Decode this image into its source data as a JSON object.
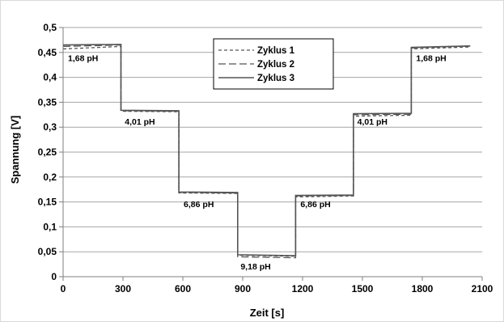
{
  "chart_data": {
    "type": "line",
    "xlabel": "Zeit [s]",
    "ylabel": "Spannung [V]",
    "xlim": [
      0,
      2100
    ],
    "ylim": [
      0,
      0.5
    ],
    "x_ticks": [
      0,
      300,
      600,
      900,
      1200,
      1500,
      1800,
      2100
    ],
    "x_tick_labels": [
      "0",
      "300",
      "600",
      "900",
      "1200",
      "1500",
      "1800",
      "2100"
    ],
    "y_ticks": [
      0,
      0.05,
      0.1,
      0.15,
      0.2,
      0.25,
      0.3,
      0.35,
      0.4,
      0.45,
      0.5
    ],
    "y_tick_labels": [
      "0",
      "0,05",
      "0,1",
      "0,15",
      "0,2",
      "0,25",
      "0,3",
      "0,35",
      "0,4",
      "0,45",
      "0,5"
    ],
    "grid": "horizontal",
    "legend_position": "top-center",
    "colors": {
      "series": "#555555",
      "grid": "#a6a6a6",
      "axis": "#7f7f7f"
    },
    "series": [
      {
        "name": "Zyklus 1",
        "style": "short-dash",
        "x": [
          0,
          290,
          290,
          580,
          580,
          875,
          875,
          1165,
          1165,
          1455,
          1455,
          1745,
          1745,
          2040
        ],
        "y": [
          0.457,
          0.462,
          0.332,
          0.331,
          0.168,
          0.167,
          0.043,
          0.041,
          0.16,
          0.162,
          0.322,
          0.324,
          0.457,
          0.461
        ]
      },
      {
        "name": "Zyklus 2",
        "style": "long-dash",
        "x": [
          0,
          290,
          290,
          580,
          580,
          875,
          875,
          1165,
          1165,
          1455,
          1455,
          1745,
          1745,
          2040
        ],
        "y": [
          0.462,
          0.465,
          0.333,
          0.332,
          0.169,
          0.168,
          0.04,
          0.038,
          0.162,
          0.163,
          0.325,
          0.326,
          0.459,
          0.463
        ]
      },
      {
        "name": "Zyklus 3",
        "style": "solid",
        "x": [
          0,
          290,
          290,
          580,
          580,
          875,
          875,
          1165,
          1165,
          1455,
          1455,
          1745,
          1745,
          2040
        ],
        "y": [
          0.465,
          0.466,
          0.334,
          0.333,
          0.17,
          0.169,
          0.044,
          0.042,
          0.163,
          0.164,
          0.327,
          0.328,
          0.46,
          0.463
        ]
      }
    ],
    "annotations": [
      {
        "text": "1,68 pH",
        "x": 100,
        "y": 0.433
      },
      {
        "text": "4,01 pH",
        "x": 385,
        "y": 0.305
      },
      {
        "text": "6,86 pH",
        "x": 680,
        "y": 0.14
      },
      {
        "text": "9,18 pH",
        "x": 965,
        "y": 0.015
      },
      {
        "text": "6,86 pH",
        "x": 1265,
        "y": 0.14
      },
      {
        "text": "4,01 pH",
        "x": 1550,
        "y": 0.305
      },
      {
        "text": "1,68 pH",
        "x": 1845,
        "y": 0.433
      }
    ]
  }
}
